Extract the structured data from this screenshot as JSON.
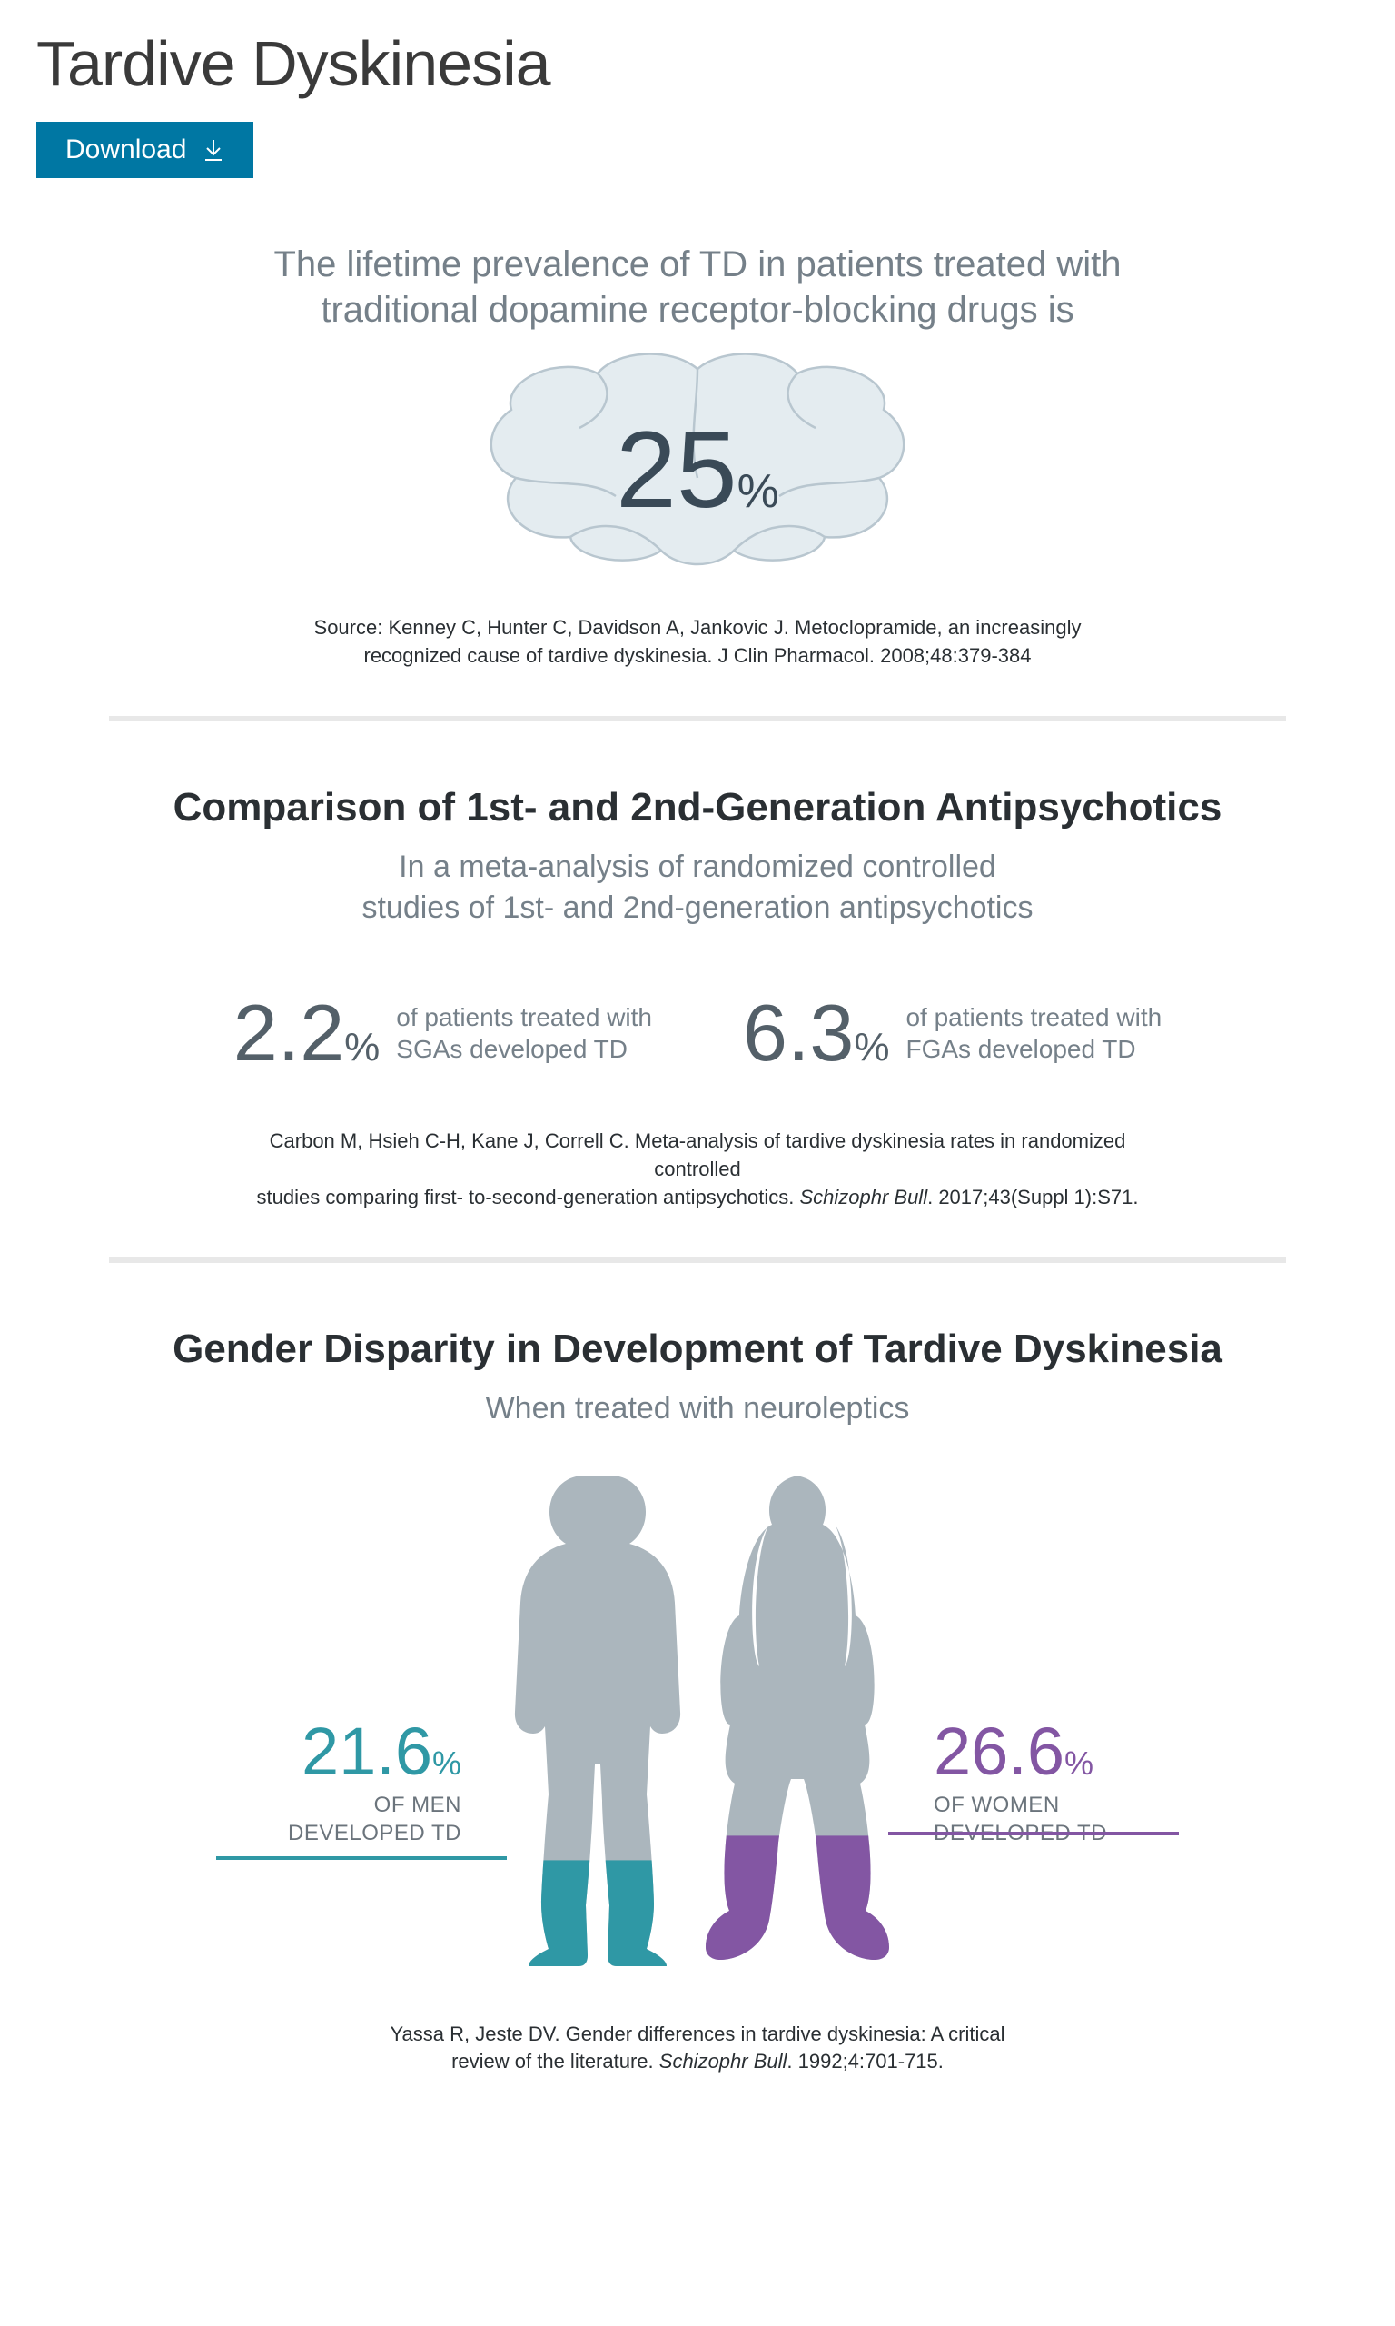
{
  "colors": {
    "accent_button": "#0077a3",
    "text_dark": "#2a2f33",
    "text_muted": "#758089",
    "brain_fill": "#e4ecf0",
    "brain_stroke": "#b8c6cf",
    "silhouette_gray": "#abb6bd",
    "men_color": "#2f98a5",
    "women_color": "#8356a3",
    "divider": "#e8e8e8",
    "big_number": "#3a4a57"
  },
  "page_title": "Tardive Dyskinesia",
  "download_label": "Download",
  "section1": {
    "intro_line1": "The lifetime prevalence of TD in patients treated with",
    "intro_line2": "traditional dopamine receptor-blocking drugs is",
    "value": "25",
    "pct_sign": "%",
    "source_line1": "Source: Kenney C, Hunter C, Davidson A, Jankovic J. Metoclopramide, an increasingly",
    "source_line2": "recognized cause of tardive dyskinesia. J Clin Pharmacol. 2008;48:379-384"
  },
  "section2": {
    "title": "Comparison of 1st- and 2nd-Generation Antipsychotics",
    "sub_line1": "In a meta-analysis of randomized controlled",
    "sub_line2": "studies of 1st- and 2nd-generation antipsychotics",
    "items": [
      {
        "value": "2.2",
        "desc_line1": "of patients treated with",
        "desc_line2": "SGAs developed TD"
      },
      {
        "value": "6.3",
        "desc_line1": "of patients treated with",
        "desc_line2": "FGAs developed TD"
      }
    ],
    "pct_sign": "%",
    "source_line1": "Carbon M, Hsieh C-H, Kane J, Correll C. Meta-analysis of tardive dyskinesia rates in randomized controlled",
    "source_line2_a": "studies comparing first- to-second-generation antipsychotics. ",
    "source_line2_em": "Schizophr Bull",
    "source_line2_b": ". 2017;43(Suppl 1):S71."
  },
  "section3": {
    "title": "Gender Disparity in Development of Tardive Dyskinesia",
    "sub": "When treated with neuroleptics",
    "men": {
      "value": "21.6",
      "who_line1": "OF MEN",
      "who_line2": "DEVELOPED TD",
      "fill_ratio": 0.216
    },
    "women": {
      "value": "26.6",
      "who_line1": "OF WOMEN",
      "who_line2": "DEVELOPED TD",
      "fill_ratio": 0.266
    },
    "pct_sign": "%",
    "source_line1": "Yassa R, Jeste DV. Gender differences in tardive dyskinesia: A critical",
    "source_line2_a": "review of the literature. ",
    "source_line2_em": "Schizophr Bull",
    "source_line2_b": ". 1992;4:701-715."
  }
}
